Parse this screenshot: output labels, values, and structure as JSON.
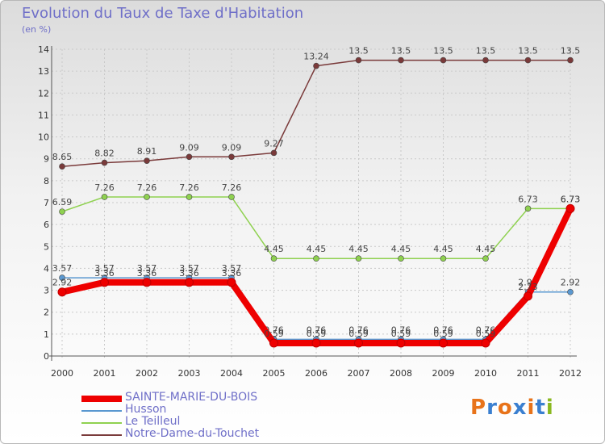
{
  "chart_data": {
    "type": "line",
    "title": "Evolution du Taux de Taxe d'Habitation",
    "subtitle": "(en %)",
    "xlabel": "",
    "ylabel": "(en %)",
    "ylim": [
      0,
      14
    ],
    "yticks": [
      "0",
      "1",
      "2",
      "3",
      "4",
      "5",
      "6",
      "7",
      "8",
      "9",
      "10",
      "11",
      "12",
      "13",
      "14"
    ],
    "categories": [
      "2000",
      "2001",
      "2002",
      "2003",
      "2004",
      "2005",
      "2006",
      "2007",
      "2008",
      "2009",
      "2010",
      "2011",
      "2012"
    ],
    "series": [
      {
        "name": "SAINTE-MARIE-DU-BOIS",
        "color": "#ee0000",
        "values": [
          2.92,
          3.36,
          3.36,
          3.36,
          3.36,
          0.59,
          0.59,
          0.59,
          0.59,
          0.59,
          0.59,
          2.73,
          6.73
        ],
        "labels": [
          "2.92",
          "3.36",
          "3.36",
          "3.36",
          "3.36",
          "0.59",
          "0.59",
          "0.59",
          "0.59",
          "0.59",
          "0.59",
          "2.73",
          "6.73"
        ]
      },
      {
        "name": "Husson",
        "color": "#5a98d0",
        "values": [
          3.57,
          3.57,
          3.57,
          3.57,
          3.57,
          0.76,
          0.76,
          0.76,
          0.76,
          0.76,
          0.76,
          2.92,
          2.92
        ],
        "labels": [
          "3.57",
          "3.57",
          "3.57",
          "3.57",
          "3.57",
          "0.76",
          "0.76",
          "0.76",
          "0.76",
          "0.76",
          "0.76",
          "2.92",
          "2.92"
        ]
      },
      {
        "name": "Le Teilleul",
        "color": "#8fd150",
        "values": [
          6.59,
          7.26,
          7.26,
          7.26,
          7.26,
          4.45,
          4.45,
          4.45,
          4.45,
          4.45,
          4.45,
          6.73,
          6.73
        ],
        "labels": [
          "6.59",
          "7.26",
          "7.26",
          "7.26",
          "7.26",
          "4.45",
          "4.45",
          "4.45",
          "4.45",
          "4.45",
          "4.45",
          "6.73",
          "6.73"
        ]
      },
      {
        "name": "Notre-Dame-du-Touchet",
        "color": "#7a3a3a",
        "values": [
          8.65,
          8.82,
          8.91,
          9.09,
          9.09,
          9.27,
          13.24,
          13.5,
          13.5,
          13.5,
          13.5,
          13.5,
          13.5
        ],
        "labels": [
          "8.65",
          "8.82",
          "8.91",
          "9.09",
          "9.09",
          "9.27",
          "13.24",
          "13.5",
          "13.5",
          "13.5",
          "13.5",
          "13.5",
          "13.5"
        ]
      }
    ],
    "legend_position": "bottom-left"
  },
  "logo": {
    "letters": [
      "P",
      "r",
      "o",
      "x",
      "i",
      "t",
      "i"
    ],
    "colors": [
      "#e8731a",
      "#3a7fd0",
      "#e8731a",
      "#3a7fd0",
      "#e8731a",
      "#3a7fd0",
      "#8ab820"
    ]
  }
}
